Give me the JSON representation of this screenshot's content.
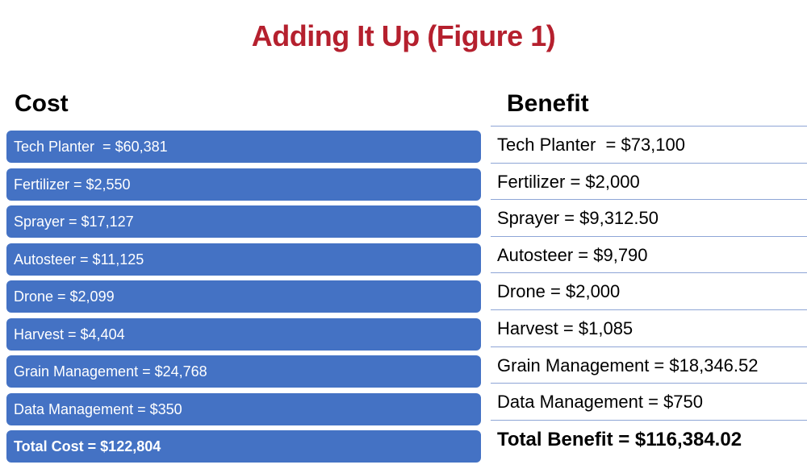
{
  "title": "Adding It Up (Figure 1)",
  "cost": {
    "heading": "Cost",
    "items": [
      "Tech Planter  = $60,381",
      "Fertilizer = $2,550",
      "Sprayer = $17,127",
      "Autosteer = $11,125",
      "Drone = $2,099",
      "Harvest = $4,404",
      "Grain Management = $24,768",
      "Data Management = $350"
    ],
    "total": "Total Cost = $122,804"
  },
  "benefit": {
    "heading": "Benefit",
    "items": [
      "Tech Planter  = $73,100",
      "Fertilizer = $2,000",
      "Sprayer = $9,312.50",
      "Autosteer = $9,790",
      "Drone = $2,000",
      "Harvest = $1,085",
      "Grain Management = $18,346.52",
      "Data Management = $750"
    ],
    "total": "Total Benefit = $116,384.02"
  },
  "colors": {
    "title": "#b5202e",
    "cost_box": "#4472c4",
    "benefit_rule": "#8ea5d6"
  }
}
